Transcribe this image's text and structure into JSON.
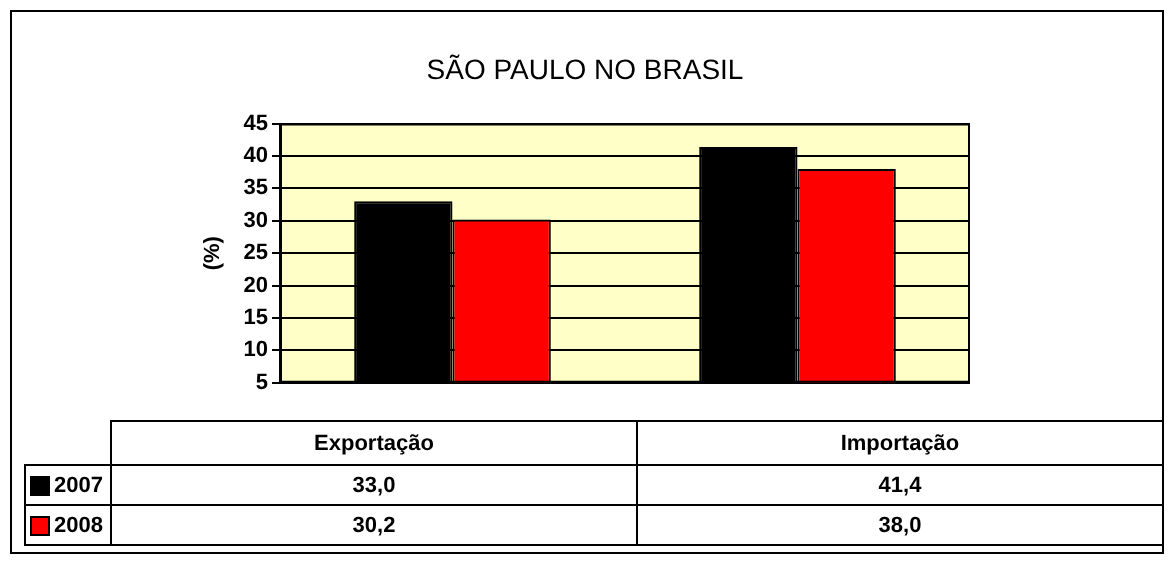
{
  "chart_data": {
    "type": "bar",
    "title": "SÃO PAULO NO BRASIL",
    "ylabel": "(%)",
    "categories": [
      "Exportação",
      "Importação"
    ],
    "series": [
      {
        "name": "2007",
        "color": "#000000",
        "values": [
          33.0,
          41.4
        ],
        "value_labels": [
          "33,0",
          "41,4"
        ]
      },
      {
        "name": "2008",
        "color": "#ff0000",
        "values": [
          30.2,
          38.0
        ],
        "value_labels": [
          "30,2",
          "38,0"
        ]
      }
    ],
    "ylim": [
      5,
      45
    ],
    "yticks": [
      5,
      10,
      15,
      20,
      25,
      30,
      35,
      40,
      45
    ],
    "grid": "y",
    "legend": "bottom",
    "tick_labels": "y"
  }
}
